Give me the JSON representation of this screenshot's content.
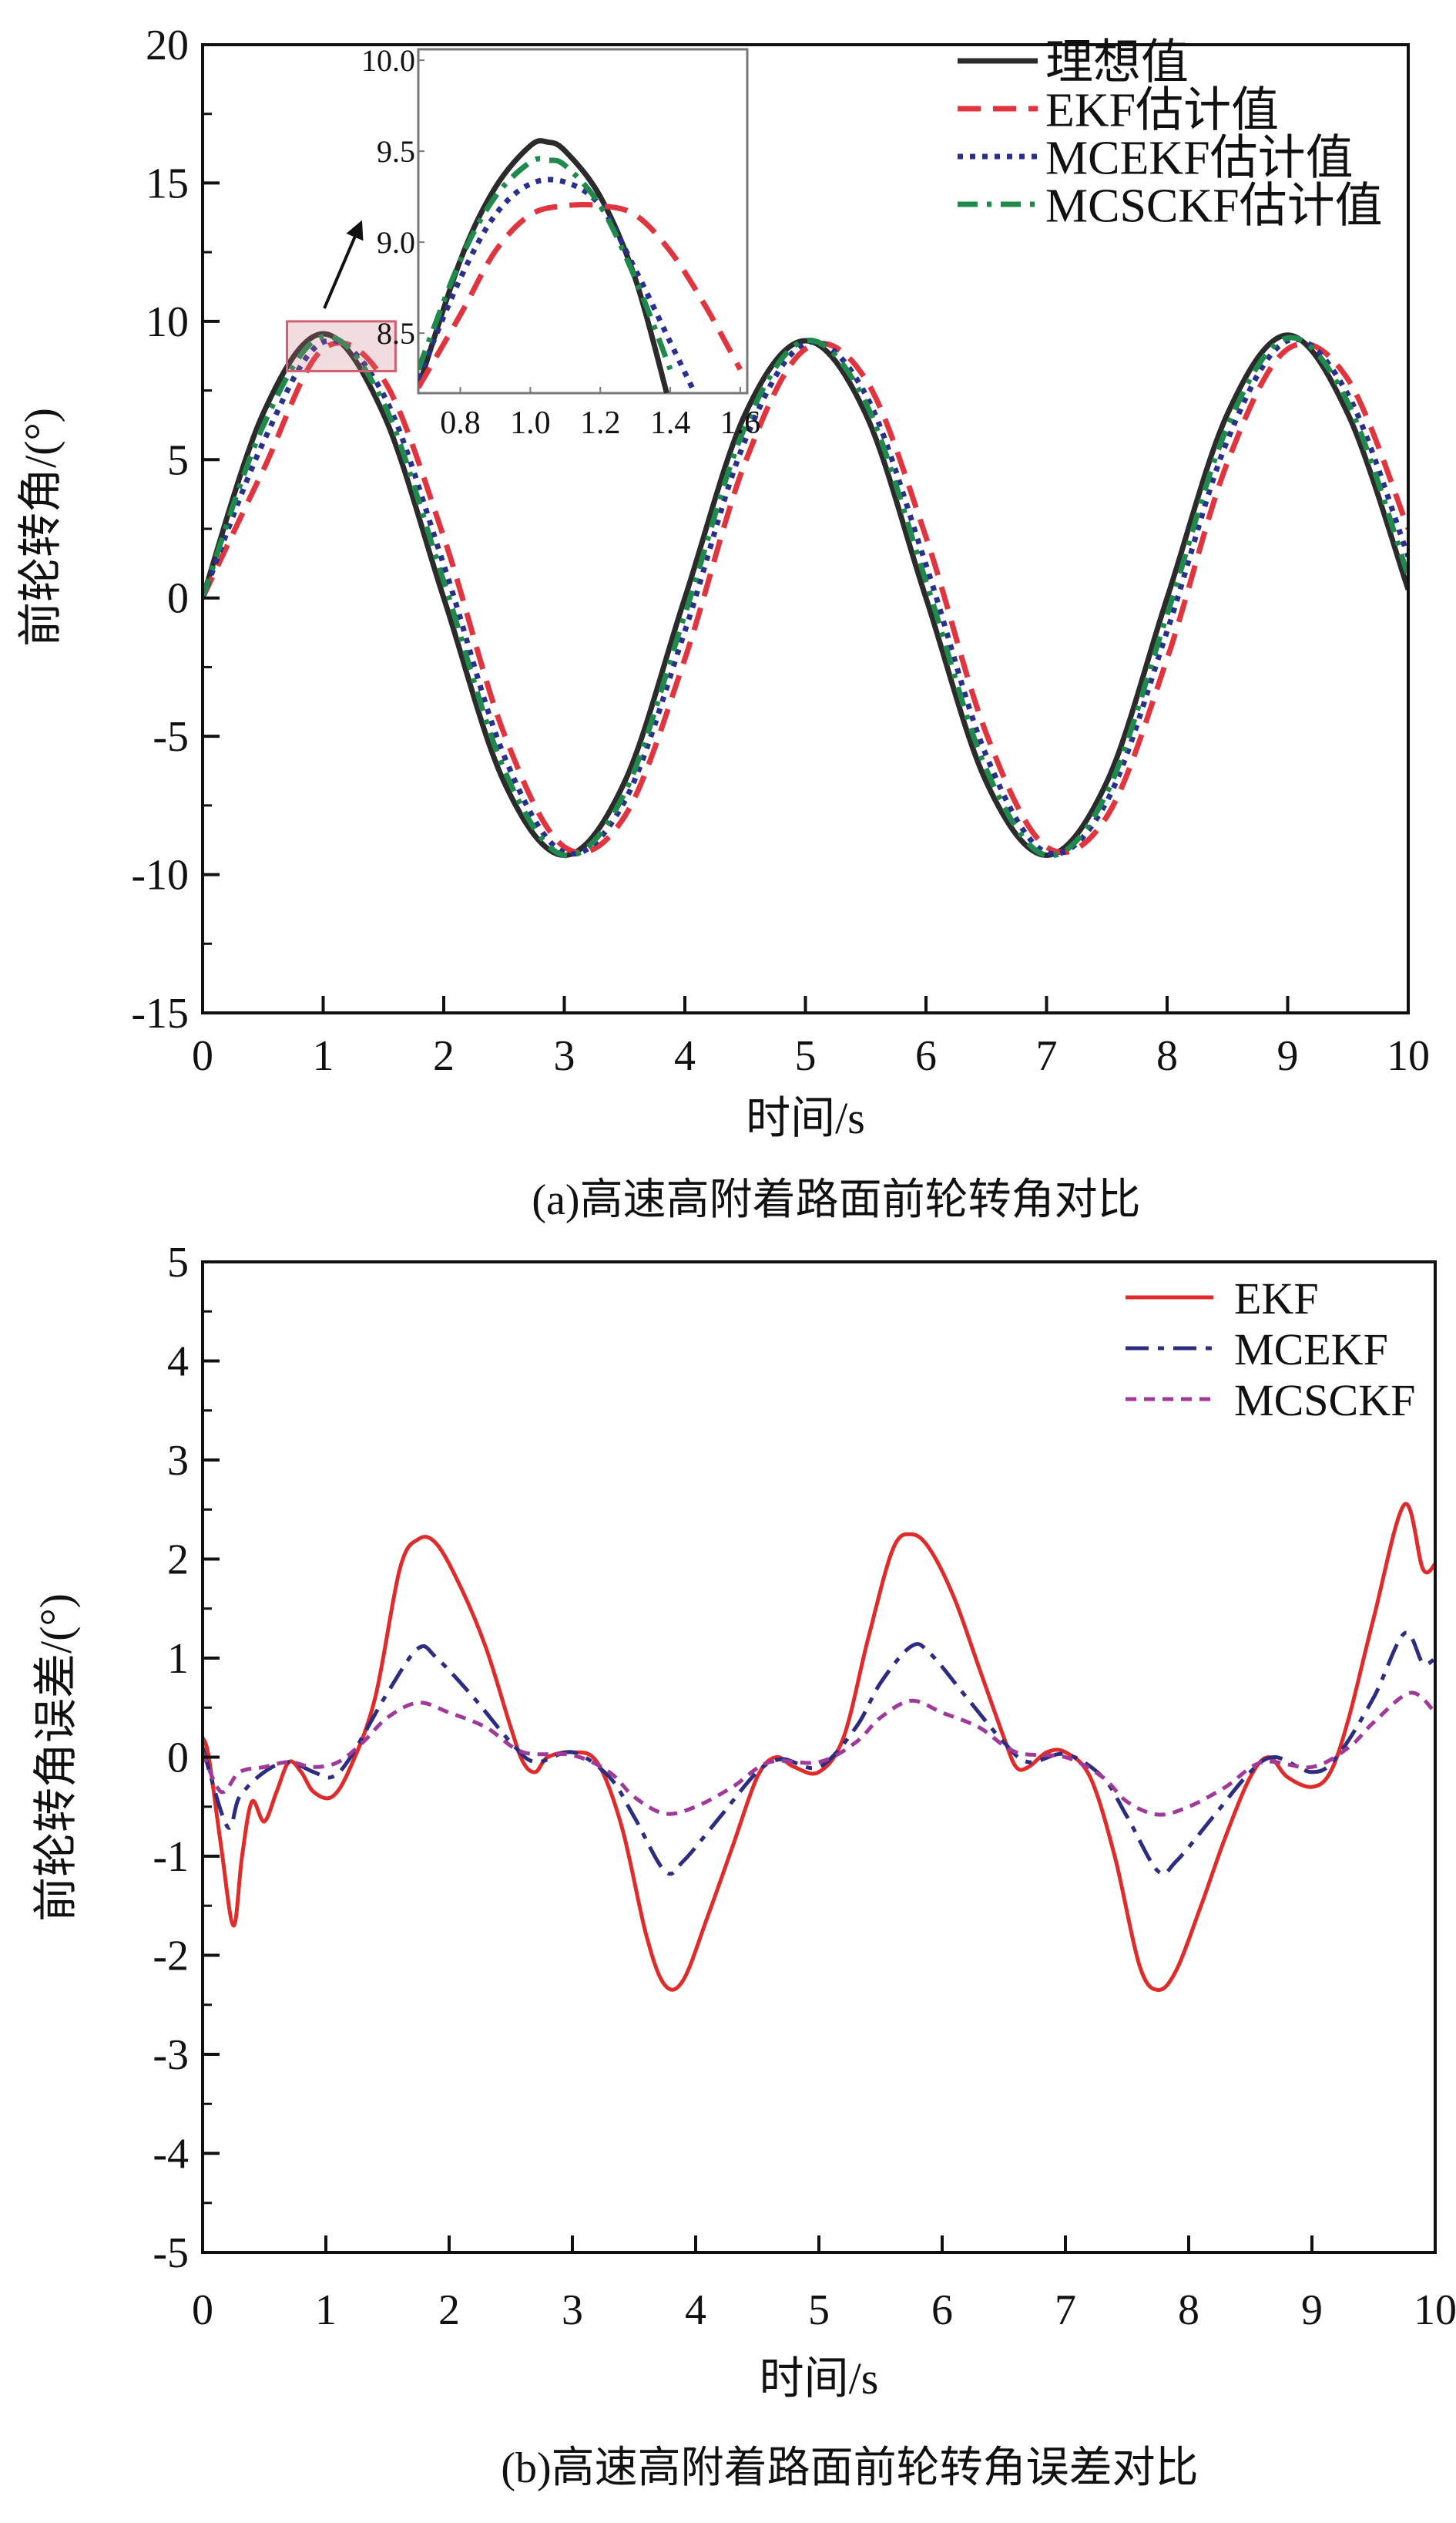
{
  "chart_data": [
    {
      "type": "line",
      "title": "(a)高速高附着路面前轮转角对比",
      "xlabel": "时间/s",
      "ylabel": "前轮转角/(°)",
      "xlim": [
        0,
        10
      ],
      "ylim": [
        -15,
        20
      ],
      "xticks": [
        "0",
        "1",
        "2",
        "3",
        "4",
        "5",
        "6",
        "7",
        "8",
        "9",
        "10"
      ],
      "yticks": [
        "20",
        "15",
        "10",
        "5",
        "0",
        "-5",
        "-10",
        "-15"
      ],
      "legend_position": "top-right",
      "x": [
        0,
        0.5,
        1,
        1.5,
        2,
        2.5,
        3,
        3.5,
        4,
        4.5,
        5,
        5.5,
        6,
        6.5,
        7,
        7.5,
        8,
        8.5,
        9,
        9.5,
        10
      ],
      "series": [
        {
          "name": "理想值",
          "color": "#2b2b2b",
          "dash": "solid",
          "values": [
            0,
            6.65,
            9.55,
            6.65,
            0,
            -6.65,
            -9.3,
            -6.65,
            0,
            6.65,
            9.3,
            6.65,
            0,
            -6.65,
            -9.3,
            -6.65,
            0,
            6.65,
            9.5,
            6.65,
            0.3
          ]
        },
        {
          "name": "EKF估计值",
          "color": "#e0353f",
          "dash": "dashed",
          "values": [
            0,
            4.6,
            9.0,
            7.9,
            2.2,
            -4.9,
            -9.0,
            -7.9,
            -2.2,
            4.9,
            9.0,
            7.9,
            2.2,
            -4.9,
            -9.0,
            -7.9,
            -2.2,
            4.9,
            9.0,
            7.9,
            2.5
          ]
        },
        {
          "name": "MCEKF估计值",
          "color": "#2a2f8f",
          "dash": "dotted",
          "values": [
            0,
            5.6,
            9.25,
            7.35,
            1.2,
            -5.7,
            -9.2,
            -7.35,
            -1.2,
            5.7,
            9.2,
            7.35,
            1.2,
            -5.7,
            -9.2,
            -7.35,
            -1.2,
            5.7,
            9.3,
            7.35,
            1.5
          ]
        },
        {
          "name": "MCSCKF估计值",
          "color": "#1f8a4c",
          "dash": "dashdot",
          "values": [
            0,
            6.2,
            9.45,
            7.05,
            0.6,
            -6.2,
            -9.3,
            -7.05,
            -0.6,
            6.2,
            9.3,
            7.05,
            0.6,
            -6.2,
            -9.3,
            -7.05,
            -0.6,
            6.2,
            9.4,
            7.05,
            0.8
          ]
        }
      ],
      "inset": {
        "xlim": [
          0.68,
          1.62
        ],
        "ylim": [
          8.17,
          10.06
        ],
        "xticks": [
          "0.8",
          "1.0",
          "1.2",
          "1.4",
          "1.6"
        ],
        "yticks": [
          "10.0",
          "9.5",
          "9.0",
          "8.5"
        ],
        "zoom_region": {
          "x": [
            0.7,
            1.6
          ],
          "y": [
            8.2,
            10.0
          ]
        },
        "series": [
          {
            "name": "理想值",
            "x": [
              0.68,
              0.8,
              0.9,
              1.0,
              1.05,
              1.1,
              1.2,
              1.3,
              1.39
            ],
            "values": [
              8.2,
              8.9,
              9.3,
              9.53,
              9.55,
              9.5,
              9.25,
              8.8,
              8.17
            ]
          },
          {
            "name": "EKF估计值",
            "x": [
              0.68,
              0.8,
              0.9,
              1.0,
              1.1,
              1.2,
              1.3,
              1.4,
              1.5,
              1.6
            ],
            "values": [
              8.2,
              8.6,
              8.95,
              9.15,
              9.2,
              9.2,
              9.15,
              8.95,
              8.65,
              8.3
            ]
          },
          {
            "name": "MCEKF估计值",
            "x": [
              0.68,
              0.8,
              0.9,
              1.0,
              1.1,
              1.2,
              1.3,
              1.4,
              1.47
            ],
            "values": [
              8.25,
              8.8,
              9.15,
              9.32,
              9.33,
              9.2,
              8.85,
              8.45,
              8.17
            ]
          },
          {
            "name": "MCSCKF估计值",
            "x": [
              0.68,
              0.8,
              0.9,
              1.0,
              1.05,
              1.1,
              1.2,
              1.3,
              1.4
            ],
            "values": [
              8.3,
              8.9,
              9.25,
              9.44,
              9.45,
              9.42,
              9.2,
              8.8,
              8.3
            ]
          }
        ]
      }
    },
    {
      "type": "line",
      "title": "(b)高速高附着路面前轮转角误差对比",
      "xlabel": "时间/s",
      "ylabel": "前轮转角误差/(°)",
      "xlim": [
        0,
        10
      ],
      "ylim": [
        -5,
        5
      ],
      "xticks": [
        "0",
        "1",
        "2",
        "3",
        "4",
        "5",
        "6",
        "7",
        "8",
        "9",
        "10"
      ],
      "yticks": [
        "5",
        "4",
        "3",
        "2",
        "1",
        "0",
        "-1",
        "-2",
        "-3",
        "-4",
        "-5"
      ],
      "legend_position": "top-right",
      "series": [
        {
          "name": "EKF",
          "color": "#e02b2b",
          "dash": "solid",
          "x": [
            0,
            0.05,
            0.15,
            0.25,
            0.32,
            0.4,
            0.5,
            0.6,
            0.7,
            0.8,
            0.9,
            1.05,
            1.2,
            1.4,
            1.6,
            1.75,
            1.9,
            2.1,
            2.3,
            2.5,
            2.6,
            2.7,
            2.8,
            3.0,
            3.2,
            3.4,
            3.6,
            3.75,
            3.9,
            4.1,
            4.3,
            4.5,
            4.65,
            4.8,
            5.0,
            5.2,
            5.4,
            5.6,
            5.75,
            5.9,
            6.1,
            6.3,
            6.5,
            6.6,
            6.7,
            6.85,
            7.0,
            7.2,
            7.4,
            7.6,
            7.75,
            7.9,
            8.1,
            8.3,
            8.5,
            8.65,
            8.8,
            9.0,
            9.15,
            9.3,
            9.5,
            9.75,
            9.9,
            10
          ],
          "values": [
            0.2,
            0,
            -0.9,
            -1.7,
            -1.0,
            -0.45,
            -0.65,
            -0.35,
            -0.05,
            -0.15,
            -0.35,
            -0.4,
            -0.1,
            0.6,
            1.9,
            2.2,
            2.15,
            1.7,
            1.1,
            0.3,
            -0.05,
            -0.15,
            0.0,
            0.05,
            -0.05,
            -0.7,
            -1.8,
            -2.3,
            -2.25,
            -1.6,
            -0.9,
            -0.2,
            0.0,
            -0.1,
            -0.15,
            0.2,
            1.2,
            2.1,
            2.25,
            2.1,
            1.6,
            0.9,
            0.2,
            -0.1,
            -0.1,
            0.05,
            0.05,
            -0.2,
            -1.0,
            -2.1,
            -2.35,
            -2.15,
            -1.5,
            -0.8,
            -0.2,
            0.0,
            -0.2,
            -0.3,
            -0.15,
            0.4,
            1.4,
            2.55,
            1.9,
            1.95
          ]
        },
        {
          "name": "MCEKF",
          "color": "#2c2c80",
          "dash": "dashdot",
          "x": [
            0,
            0.2,
            0.3,
            0.5,
            0.7,
            0.9,
            1.05,
            1.2,
            1.5,
            1.75,
            1.9,
            2.2,
            2.5,
            2.7,
            3.0,
            3.3,
            3.5,
            3.75,
            3.9,
            4.2,
            4.5,
            4.7,
            5.0,
            5.3,
            5.5,
            5.75,
            5.9,
            6.2,
            6.5,
            6.7,
            7.0,
            7.3,
            7.5,
            7.75,
            7.9,
            8.2,
            8.5,
            8.7,
            9.0,
            9.2,
            9.5,
            9.75,
            9.9,
            10
          ],
          "values": [
            0.1,
            -0.7,
            -0.4,
            -0.15,
            -0.05,
            -0.15,
            -0.2,
            0.0,
            0.65,
            1.1,
            1.0,
            0.6,
            0.15,
            -0.05,
            0.05,
            -0.2,
            -0.6,
            -1.15,
            -1.05,
            -0.6,
            -0.15,
            -0.02,
            -0.1,
            0.3,
            0.75,
            1.12,
            1.05,
            0.6,
            0.15,
            -0.05,
            0.03,
            -0.2,
            -0.6,
            -1.15,
            -1.05,
            -0.6,
            -0.15,
            0.0,
            -0.15,
            0.0,
            0.6,
            1.25,
            0.95,
            1.0
          ]
        },
        {
          "name": "MCSCKF",
          "color": "#a03a9a",
          "dash": "dashed",
          "x": [
            0,
            0.15,
            0.3,
            0.5,
            0.7,
            0.9,
            1.1,
            1.3,
            1.5,
            1.75,
            2.0,
            2.3,
            2.6,
            3.0,
            3.3,
            3.5,
            3.75,
            4.0,
            4.3,
            4.6,
            5.0,
            5.3,
            5.5,
            5.75,
            6.0,
            6.3,
            6.6,
            7.0,
            7.3,
            7.5,
            7.75,
            8.0,
            8.3,
            8.6,
            9.0,
            9.3,
            9.5,
            9.8,
            10
          ],
          "values": [
            0.05,
            -0.35,
            -0.15,
            -0.1,
            -0.05,
            -0.1,
            -0.05,
            0.15,
            0.4,
            0.55,
            0.45,
            0.3,
            0.05,
            0.02,
            -0.15,
            -0.4,
            -0.57,
            -0.5,
            -0.3,
            -0.05,
            -0.05,
            0.15,
            0.4,
            0.57,
            0.45,
            0.3,
            0.05,
            0.0,
            -0.2,
            -0.45,
            -0.58,
            -0.5,
            -0.3,
            -0.05,
            -0.1,
            0.1,
            0.35,
            0.65,
            0.45
          ]
        }
      ]
    }
  ]
}
